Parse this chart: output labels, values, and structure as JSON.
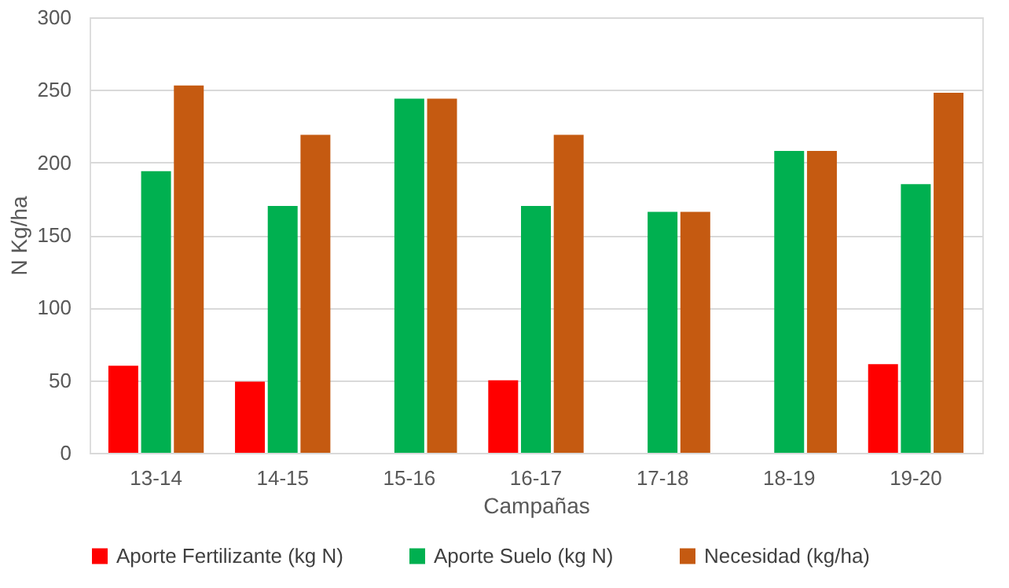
{
  "chart_data": {
    "type": "bar",
    "xlabel": "Campañas",
    "ylabel": "N Kg/ha",
    "categories": [
      "13-14",
      "14-15",
      "15-16",
      "16-17",
      "17-18",
      "18-19",
      "19-20"
    ],
    "series": [
      {
        "name": "Aporte Fertilizante (kg N)",
        "color": "#ff0000",
        "values": [
          60,
          49,
          null,
          50,
          null,
          null,
          61
        ]
      },
      {
        "name": "Aporte Suelo (kg N)",
        "color": "#00b050",
        "values": [
          194,
          170,
          244,
          170,
          166,
          208,
          185
        ]
      },
      {
        "name": "Necesidad (kg/ha)",
        "color": "#c55a11",
        "values": [
          253,
          219,
          244,
          219,
          166,
          208,
          248
        ]
      }
    ],
    "ylim": [
      0,
      300
    ],
    "yticks": [
      0,
      50,
      100,
      150,
      200,
      250,
      300
    ],
    "grid": "y",
    "legend": "bottom"
  }
}
